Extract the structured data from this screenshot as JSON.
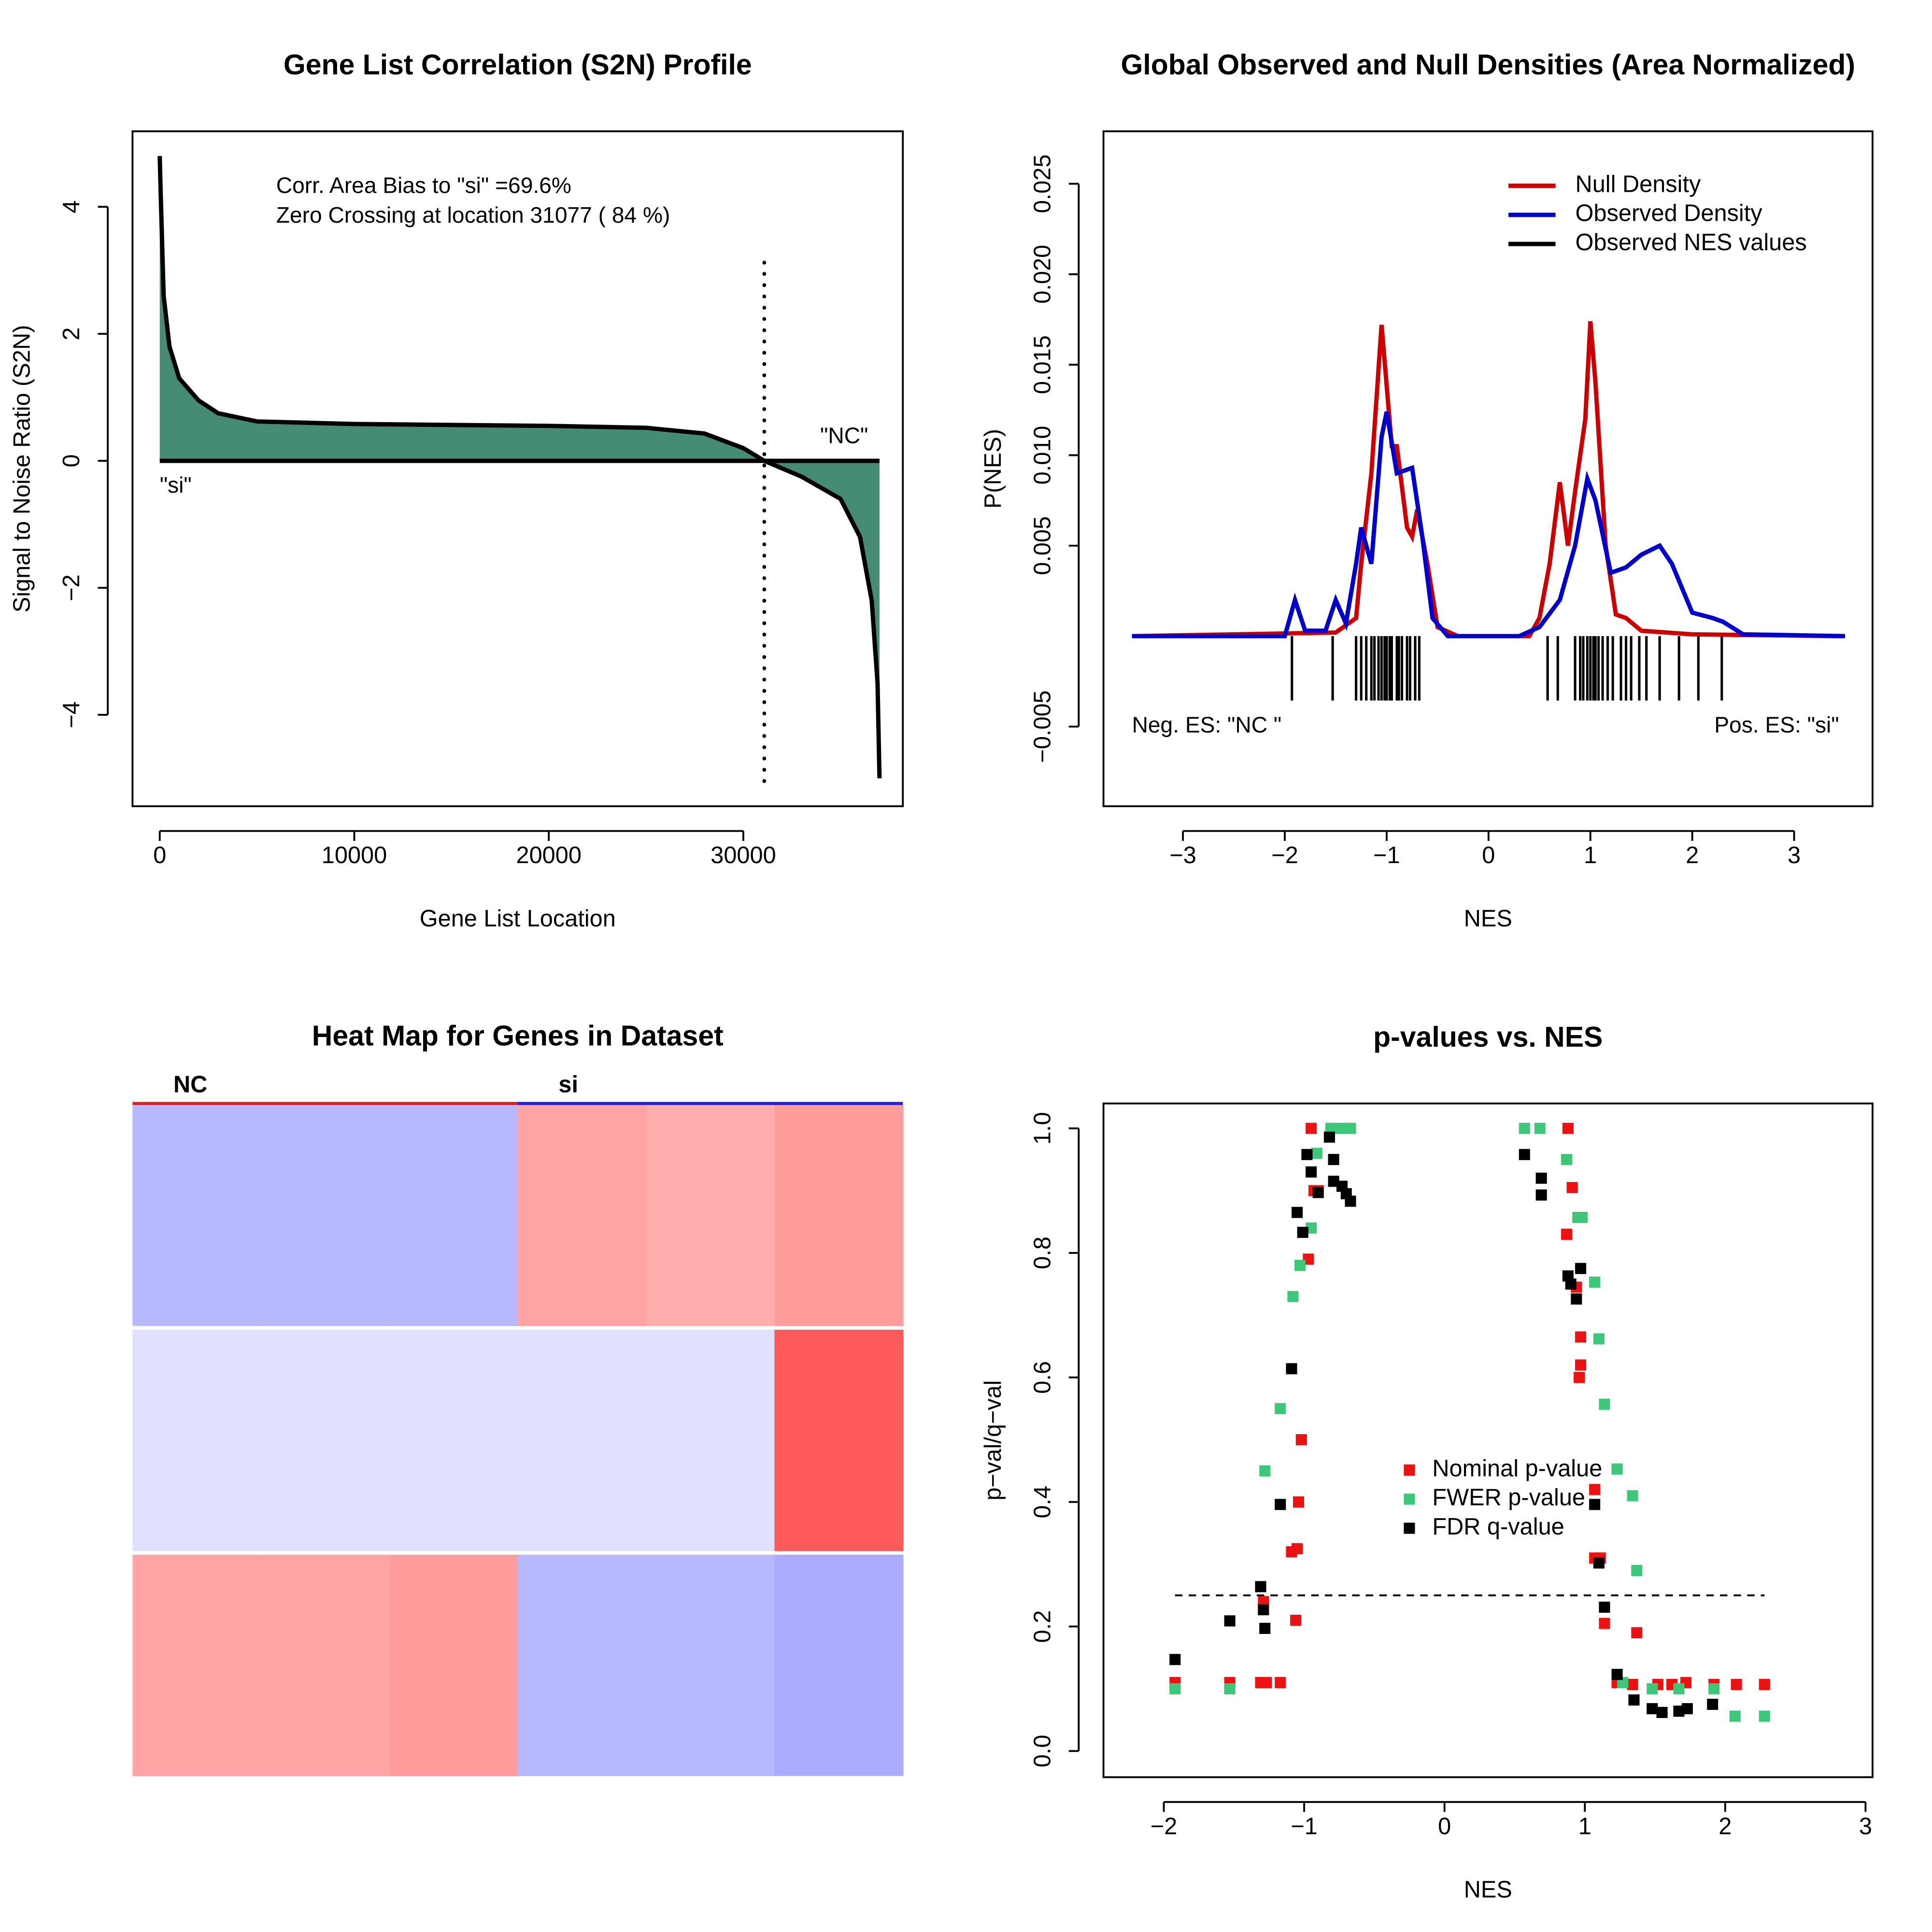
{
  "chart_data": [
    {
      "type": "area",
      "title": "Gene List Correlation (S2N) Profile",
      "x_label": "Gene List Location",
      "y_label": "Signal to Noise Ratio (S2N)",
      "x": [
        0,
        50,
        200,
        500,
        1000,
        2000,
        3000,
        5000,
        10000,
        20000,
        25000,
        28000,
        30000,
        31077,
        33000,
        35000,
        36000,
        36600,
        36900,
        37000
      ],
      "values": [
        4.8,
        4.2,
        2.6,
        1.8,
        1.3,
        0.95,
        0.75,
        0.62,
        0.58,
        0.55,
        0.52,
        0.43,
        0.2,
        0,
        -0.25,
        -0.6,
        -1.2,
        -2.2,
        -3.5,
        -5
      ],
      "color": "#468b73",
      "line_color": "#000000",
      "zero_crossing": 31077,
      "annotations": [
        "Corr. Area Bias to \"si\" =69.6%",
        "Zero Crossing at location  31077  ( 84  %)"
      ],
      "low_label": "\"si\"",
      "high_label": "\"NC\"",
      "xlim": [
        -1400,
        38200
      ],
      "ylim": [
        -5.44,
        5.19
      ],
      "xticks": [
        0,
        10000,
        20000,
        30000
      ],
      "yticks": [
        {
          "value": -4,
          "label": "−4"
        },
        {
          "value": -2,
          "label": "−2"
        },
        0,
        2,
        4
      ]
    },
    {
      "type": "density",
      "title": "Global Observed and Null Densities (Area Normalized)",
      "x_label": "NES",
      "y_label": "P(NES)",
      "series": [
        {
          "name": "Null Density",
          "color": "#cc0000",
          "x": [
            -3.5,
            -1.5,
            -1.3,
            -1.25,
            -1.15,
            -1.05,
            -0.95,
            -0.9,
            -0.8,
            -0.75,
            -0.7,
            -0.6,
            -0.5,
            -0.3,
            0.4,
            0.5,
            0.6,
            0.7,
            0.78,
            0.85,
            0.95,
            1.0,
            1.05,
            1.15,
            1.25,
            1.35,
            1.5,
            2,
            3.5
          ],
          "values": [
            0,
            0.0002,
            0.001,
            0.004,
            0.009,
            0.0172,
            0.0105,
            0.0105,
            0.006,
            0.0055,
            0.007,
            0.004,
            0.0005,
            0,
            0,
            0.001,
            0.004,
            0.0085,
            0.005,
            0.008,
            0.012,
            0.0174,
            0.014,
            0.005,
            0.0012,
            0.001,
            0.0003,
            0.0001,
            0
          ]
        },
        {
          "name": "Observed Density",
          "color": "#0000cc",
          "x": [
            -3.5,
            -2.0,
            -1.9,
            -1.8,
            -1.6,
            -1.5,
            -1.4,
            -1.3,
            -1.25,
            -1.15,
            -1.05,
            -1.0,
            -0.9,
            -0.8,
            -0.75,
            -0.65,
            -0.55,
            -0.4,
            0.3,
            0.5,
            0.7,
            0.85,
            0.97,
            1.05,
            1.2,
            1.35,
            1.5,
            1.68,
            1.8,
            2.0,
            2.2,
            2.3,
            2.5,
            3.5
          ],
          "values": [
            0,
            0,
            0.002,
            0.0003,
            0.0003,
            0.002,
            0.0007,
            0.004,
            0.006,
            0.004,
            0.011,
            0.0124,
            0.009,
            0.0092,
            0.0093,
            0.0055,
            0.001,
            0,
            0,
            0.0005,
            0.002,
            0.005,
            0.0087,
            0.0075,
            0.0035,
            0.0038,
            0.0045,
            0.005,
            0.004,
            0.0013,
            0.001,
            0.0008,
            0.0001,
            0
          ]
        },
        {
          "name": "Observed NES values",
          "color": "#000000",
          "values": [
            -1.93,
            -1.53,
            -1.3,
            -1.25,
            -1.2,
            -1.15,
            -1.12,
            -1.08,
            -1.05,
            -1.02,
            -1.0,
            -0.97,
            -0.95,
            -0.9,
            -0.88,
            -0.85,
            -0.8,
            -0.77,
            -0.72,
            -0.68,
            0.58,
            0.68,
            0.85,
            0.9,
            0.93,
            0.97,
            1.0,
            1.03,
            1.05,
            1.08,
            1.12,
            1.17,
            1.22,
            1.3,
            1.35,
            1.4,
            1.48,
            1.55,
            1.68,
            1.87,
            2.06,
            2.29
          ]
        }
      ],
      "annotations": [
        "Neg. ES: \"NC \"",
        "Pos. ES: \"si\""
      ],
      "legend_position": "topright",
      "xlim": [
        -3.78,
        3.77
      ],
      "ylim": [
        -0.0094,
        0.0279
      ],
      "xticks": [
        {
          "value": -3,
          "label": "−3"
        },
        {
          "value": -2,
          "label": "−2"
        },
        {
          "value": -1,
          "label": "−1"
        },
        0,
        1,
        2,
        3
      ],
      "yticks": [
        {
          "value": -0.005,
          "label": "−0.005"
        },
        0.005,
        {
          "value": 0.01,
          "label": "0.010"
        },
        0.015,
        {
          "value": 0.02,
          "label": "0.020"
        },
        0.025
      ]
    },
    {
      "type": "heatmap",
      "title": "Heat Map for Genes in Dataset",
      "groups": [
        {
          "name": "NC",
          "color": "#e02020"
        },
        {
          "name": "si",
          "color": "#2020e0"
        }
      ],
      "color_scale": [
        "#8888ff",
        "#ffffff",
        "#ff5a5a"
      ],
      "zlim": [
        -1,
        1
      ],
      "values": [
        [
          -0.6,
          -0.6,
          -0.6,
          0.55,
          0.5,
          0.6
        ],
        [
          -0.25,
          -0.25,
          -0.25,
          -0.25,
          -0.25,
          1
        ],
        [
          0.55,
          0.55,
          0.6,
          -0.6,
          -0.6,
          -0.7
        ]
      ]
    },
    {
      "type": "scatter",
      "title": "p-values vs. NES",
      "x_label": "NES",
      "y_label": "p−val/q−val",
      "series": [
        {
          "name": "Nominal p-value",
          "color": "#ee1111",
          "x": [
            -1.92,
            -1.53,
            -1.31,
            -1.27,
            -1.17,
            -1.29,
            -1.06,
            -1.09,
            -1.05,
            -1.04,
            -1.02,
            -0.97,
            -0.93,
            -0.9,
            -0.95,
            0.88,
            0.91,
            0.87,
            0.94,
            0.97,
            0.97,
            0.96,
            1.07,
            1.07,
            1.11,
            1.14,
            1.37,
            1.23,
            1.34,
            1.52,
            1.62,
            1.72,
            1.92,
            2.08,
            2.28
          ],
          "values": [
            0.11,
            0.11,
            0.11,
            0.11,
            0.11,
            0.24,
            0.21,
            0.32,
            0.325,
            0.4,
            0.5,
            0.79,
            0.9,
            0.9,
            1.0,
            1.0,
            0.905,
            0.83,
            0.745,
            0.665,
            0.62,
            0.6,
            0.42,
            0.31,
            0.31,
            0.205,
            0.19,
            0.11,
            0.107,
            0.107,
            0.107,
            0.11,
            0.107,
            0.107,
            0.107
          ]
        },
        {
          "name": "FWER p-value",
          "color": "#3cc878",
          "x": [
            -1.92,
            -1.53,
            -1.28,
            -1.17,
            -1.08,
            -1.03,
            -0.95,
            -0.91,
            -0.81,
            -0.74,
            -0.67,
            0.57,
            0.68,
            0.87,
            0.95,
            0.98,
            1.07,
            1.1,
            1.14,
            1.23,
            1.34,
            1.37,
            1.27,
            1.48,
            1.67,
            1.92,
            2.07,
            2.28
          ],
          "values": [
            0.1,
            0.1,
            0.45,
            0.55,
            0.73,
            0.78,
            0.84,
            0.96,
            1.0,
            1.0,
            1.0,
            1.0,
            1.0,
            0.95,
            0.857,
            0.857,
            0.753,
            0.662,
            0.557,
            0.453,
            0.41,
            0.29,
            0.11,
            0.1,
            0.1,
            0.1,
            0.056,
            0.056
          ]
        },
        {
          "name": "FDR q-value",
          "color": "#000000",
          "x": [
            -1.92,
            -1.53,
            -1.31,
            -1.29,
            -1.28,
            -1.17,
            -1.09,
            -1.05,
            -1.01,
            -0.98,
            -0.95,
            -0.9,
            -0.82,
            -0.79,
            -0.79,
            -0.73,
            -0.7,
            -0.67,
            0.57,
            0.69,
            0.69,
            0.88,
            0.9,
            0.94,
            0.97,
            1.07,
            1.1,
            1.14,
            1.23,
            1.35,
            1.48,
            1.55,
            1.67,
            1.73,
            1.91
          ],
          "values": [
            0.147,
            0.209,
            0.264,
            0.227,
            0.197,
            0.396,
            0.614,
            0.865,
            0.833,
            0.958,
            0.93,
            0.897,
            0.986,
            0.95,
            0.915,
            0.907,
            0.895,
            0.883,
            0.958,
            0.92,
            0.893,
            0.763,
            0.75,
            0.726,
            0.775,
            0.396,
            0.302,
            0.231,
            0.123,
            0.082,
            0.068,
            0.062,
            0.064,
            0.068,
            0.075
          ]
        }
      ],
      "reference_line": 0.25,
      "legend_position": "center",
      "xlim": [
        -2.43,
        3.05
      ],
      "ylim": [
        -0.042,
        1.04
      ],
      "xticks": [
        {
          "value": -2,
          "label": "−2"
        },
        {
          "value": -1,
          "label": "−1"
        },
        0,
        1,
        2,
        3
      ],
      "yticks": [
        {
          "value": 0,
          "label": "0.0"
        },
        0.2,
        0.4,
        0.6,
        0.8,
        {
          "value": 1,
          "label": "1.0"
        }
      ]
    }
  ]
}
